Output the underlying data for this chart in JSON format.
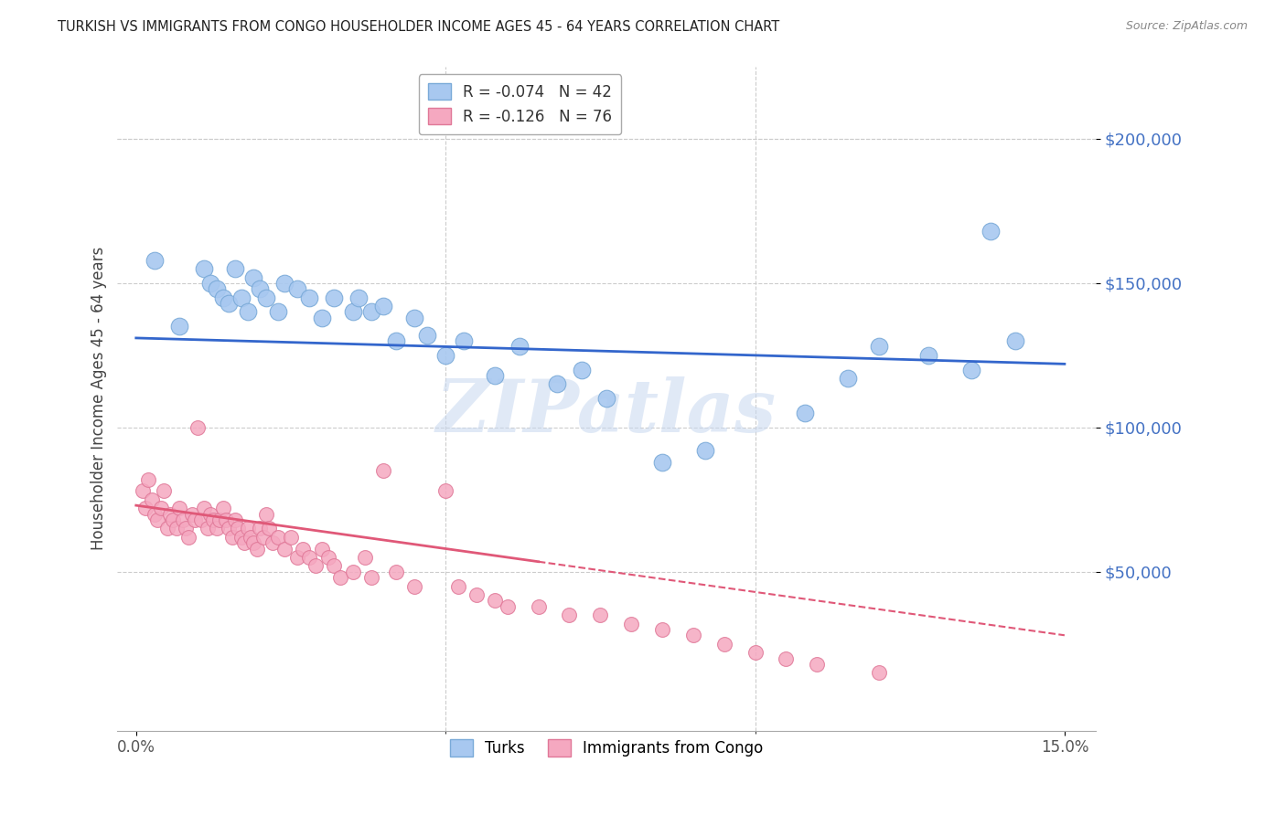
{
  "title": "TURKISH VS IMMIGRANTS FROM CONGO HOUSEHOLDER INCOME AGES 45 - 64 YEARS CORRELATION CHART",
  "source": "Source: ZipAtlas.com",
  "ylabel": "Householder Income Ages 45 - 64 years",
  "xlabel_ticks": [
    "0.0%",
    "15.0%"
  ],
  "xlabel_vals": [
    0.0,
    15.0
  ],
  "ytick_labels": [
    "$50,000",
    "$100,000",
    "$150,000",
    "$200,000"
  ],
  "ytick_vals": [
    50000,
    100000,
    150000,
    200000
  ],
  "xlim": [
    -0.3,
    15.5
  ],
  "ylim": [
    -5000,
    225000
  ],
  "legend_turks_R": "-0.074",
  "legend_turks_N": "42",
  "legend_congo_R": "-0.126",
  "legend_congo_N": "76",
  "watermark": "ZIPatlas",
  "turks_color": "#a8c8f0",
  "turks_edge": "#7aaad8",
  "congo_color": "#f5a8c0",
  "congo_edge": "#e07898",
  "trendline_turks_color": "#3366cc",
  "trendline_congo_solid_color": "#e05878",
  "trendline_congo_dash_color": "#e05878",
  "turks_x": [
    0.3,
    0.7,
    1.1,
    1.2,
    1.3,
    1.4,
    1.5,
    1.6,
    1.7,
    1.8,
    1.9,
    2.0,
    2.1,
    2.3,
    2.4,
    2.6,
    2.8,
    3.0,
    3.2,
    3.5,
    3.6,
    3.8,
    4.0,
    4.2,
    4.5,
    4.7,
    5.0,
    5.3,
    5.8,
    6.2,
    6.8,
    7.2,
    7.6,
    8.5,
    9.2,
    10.8,
    11.5,
    12.0,
    12.8,
    13.5,
    13.8,
    14.2
  ],
  "turks_y": [
    158000,
    135000,
    155000,
    150000,
    148000,
    145000,
    143000,
    155000,
    145000,
    140000,
    152000,
    148000,
    145000,
    140000,
    150000,
    148000,
    145000,
    138000,
    145000,
    140000,
    145000,
    140000,
    142000,
    130000,
    138000,
    132000,
    125000,
    130000,
    118000,
    128000,
    115000,
    120000,
    110000,
    88000,
    92000,
    105000,
    117000,
    128000,
    125000,
    120000,
    168000,
    130000
  ],
  "congo_x": [
    0.1,
    0.15,
    0.2,
    0.25,
    0.3,
    0.35,
    0.4,
    0.45,
    0.5,
    0.55,
    0.6,
    0.65,
    0.7,
    0.75,
    0.8,
    0.85,
    0.9,
    0.95,
    1.0,
    1.05,
    1.1,
    1.15,
    1.2,
    1.25,
    1.3,
    1.35,
    1.4,
    1.45,
    1.5,
    1.55,
    1.6,
    1.65,
    1.7,
    1.75,
    1.8,
    1.85,
    1.9,
    1.95,
    2.0,
    2.05,
    2.1,
    2.15,
    2.2,
    2.3,
    2.4,
    2.5,
    2.6,
    2.7,
    2.8,
    2.9,
    3.0,
    3.1,
    3.2,
    3.3,
    3.5,
    3.7,
    3.8,
    4.0,
    4.2,
    4.5,
    5.0,
    5.2,
    5.5,
    5.8,
    6.0,
    6.5,
    7.0,
    7.5,
    8.0,
    8.5,
    9.0,
    9.5,
    10.0,
    10.5,
    11.0,
    12.0
  ],
  "congo_y": [
    78000,
    72000,
    82000,
    75000,
    70000,
    68000,
    72000,
    78000,
    65000,
    70000,
    68000,
    65000,
    72000,
    68000,
    65000,
    62000,
    70000,
    68000,
    100000,
    68000,
    72000,
    65000,
    70000,
    68000,
    65000,
    68000,
    72000,
    68000,
    65000,
    62000,
    68000,
    65000,
    62000,
    60000,
    65000,
    62000,
    60000,
    58000,
    65000,
    62000,
    70000,
    65000,
    60000,
    62000,
    58000,
    62000,
    55000,
    58000,
    55000,
    52000,
    58000,
    55000,
    52000,
    48000,
    50000,
    55000,
    48000,
    85000,
    50000,
    45000,
    78000,
    45000,
    42000,
    40000,
    38000,
    38000,
    35000,
    35000,
    32000,
    30000,
    28000,
    25000,
    22000,
    20000,
    18000,
    15000
  ],
  "congo_solid_end": 6.5,
  "background_color": "#ffffff",
  "grid_color": "#cccccc"
}
